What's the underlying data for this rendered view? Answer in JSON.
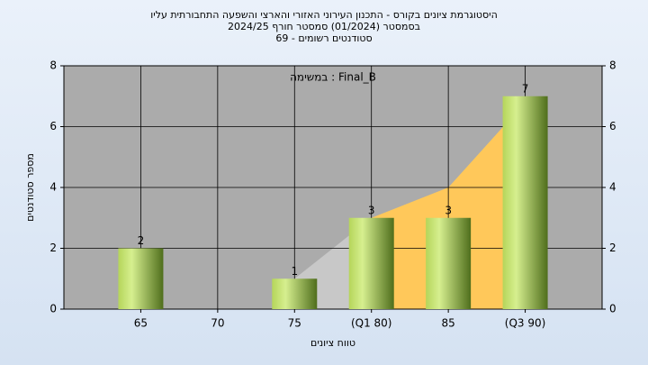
{
  "chart_data": {
    "type": "bar",
    "title": [
      "היסטוגרמת ציונים בקורס - התכנון העירוני האזורי והארצי והשפעה התחבורתית עליו",
      "בסמסטר  (01/2024)  סמסטר חורף 2024/25",
      "סטודנטים רשומים - 69"
    ],
    "annotation": "במשימה : Final_B",
    "xlabel": "טווח ציונים",
    "ylabel": "מספר סטודנטים",
    "categories": [
      "65",
      "70",
      "75",
      "(Q1 80)",
      "85",
      "(Q3 90)"
    ],
    "values": [
      2,
      0,
      1,
      3,
      3,
      7
    ],
    "areas": [
      {
        "color": "#c8c8c8",
        "values": [
          null,
          null,
          1,
          3,
          null,
          null
        ]
      },
      {
        "color": "#ffc85a",
        "values": [
          null,
          null,
          null,
          3,
          4,
          6.8
        ]
      }
    ],
    "ylim": [
      0,
      8
    ],
    "yticks": [
      0,
      2,
      4,
      6,
      8
    ],
    "grid": true
  }
}
